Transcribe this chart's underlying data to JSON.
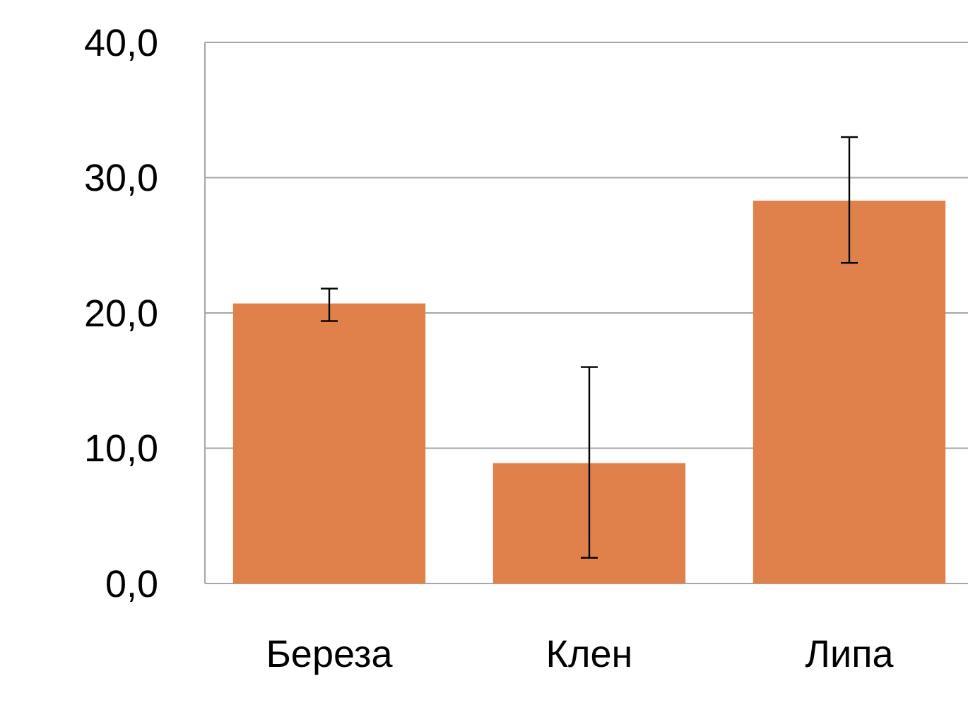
{
  "chart_data": {
    "type": "bar",
    "categories": [
      "Береза",
      "Клен",
      "Липа"
    ],
    "values": [
      20.7,
      8.9,
      28.3
    ],
    "errors": [
      [
        19.4,
        21.8
      ],
      [
        1.9,
        16.0
      ],
      [
        23.7,
        33.0
      ]
    ],
    "color": "#e0804a",
    "ylim": [
      0,
      40
    ],
    "yticks": [
      {
        "value": 0,
        "label": "0,0"
      },
      {
        "value": 10,
        "label": "10,0"
      },
      {
        "value": 20,
        "label": "20,0"
      },
      {
        "value": 30,
        "label": "30,0"
      },
      {
        "value": 40,
        "label": "40,0"
      }
    ],
    "grid": "y"
  }
}
